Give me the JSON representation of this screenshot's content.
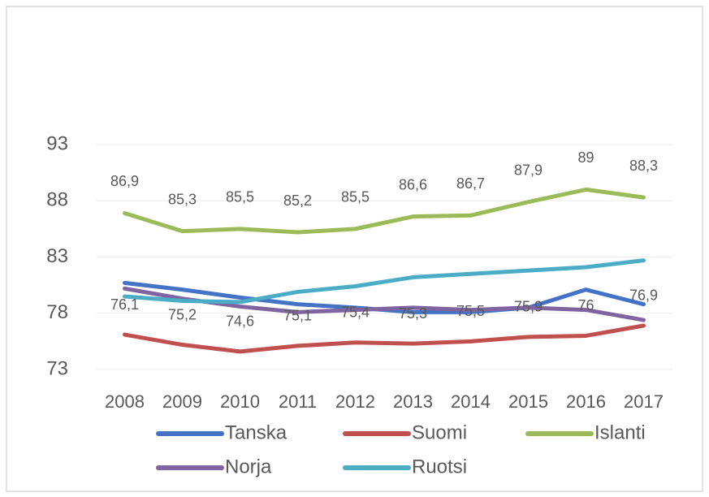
{
  "chart_data": {
    "type": "line",
    "x": [
      "2008",
      "2009",
      "2010",
      "2011",
      "2012",
      "2013",
      "2014",
      "2015",
      "2016",
      "2017"
    ],
    "ylim": [
      73,
      93
    ],
    "yticks": [
      73,
      78,
      83,
      88,
      93
    ],
    "grid": true,
    "series": [
      {
        "name": "Tanska",
        "color": "#4472c4",
        "values": [
          80.7,
          80.1,
          79.4,
          78.8,
          78.5,
          78.1,
          78.1,
          78.5,
          80.1,
          78.8
        ]
      },
      {
        "name": "Suomi",
        "color": "#c0504d",
        "values": [
          76.1,
          75.2,
          74.6,
          75.1,
          75.4,
          75.3,
          75.5,
          75.9,
          76,
          76.9
        ],
        "value_labels": [
          "76,1",
          "75,2",
          "74,6",
          "75,1",
          "75,4",
          "75,3",
          "75,5",
          "75,9",
          "76",
          "76,9"
        ]
      },
      {
        "name": "Islanti",
        "color": "#9bbb59",
        "values": [
          86.9,
          85.3,
          85.5,
          85.2,
          85.5,
          86.6,
          86.7,
          87.9,
          89,
          88.3
        ],
        "value_labels": [
          "86,9",
          "85,3",
          "85,5",
          "85,2",
          "85,5",
          "86,6",
          "86,7",
          "87,9",
          "89",
          "88,3"
        ]
      },
      {
        "name": "Norja",
        "color": "#8064a2",
        "values": [
          80.2,
          79.3,
          78.6,
          78.1,
          78.3,
          78.5,
          78.3,
          78.5,
          78.3,
          77.4
        ]
      },
      {
        "name": "Ruotsi",
        "color": "#4bacc6",
        "values": [
          79.5,
          79.1,
          79.0,
          79.9,
          80.4,
          81.2,
          81.5,
          81.8,
          82.1,
          82.7
        ]
      }
    ]
  }
}
